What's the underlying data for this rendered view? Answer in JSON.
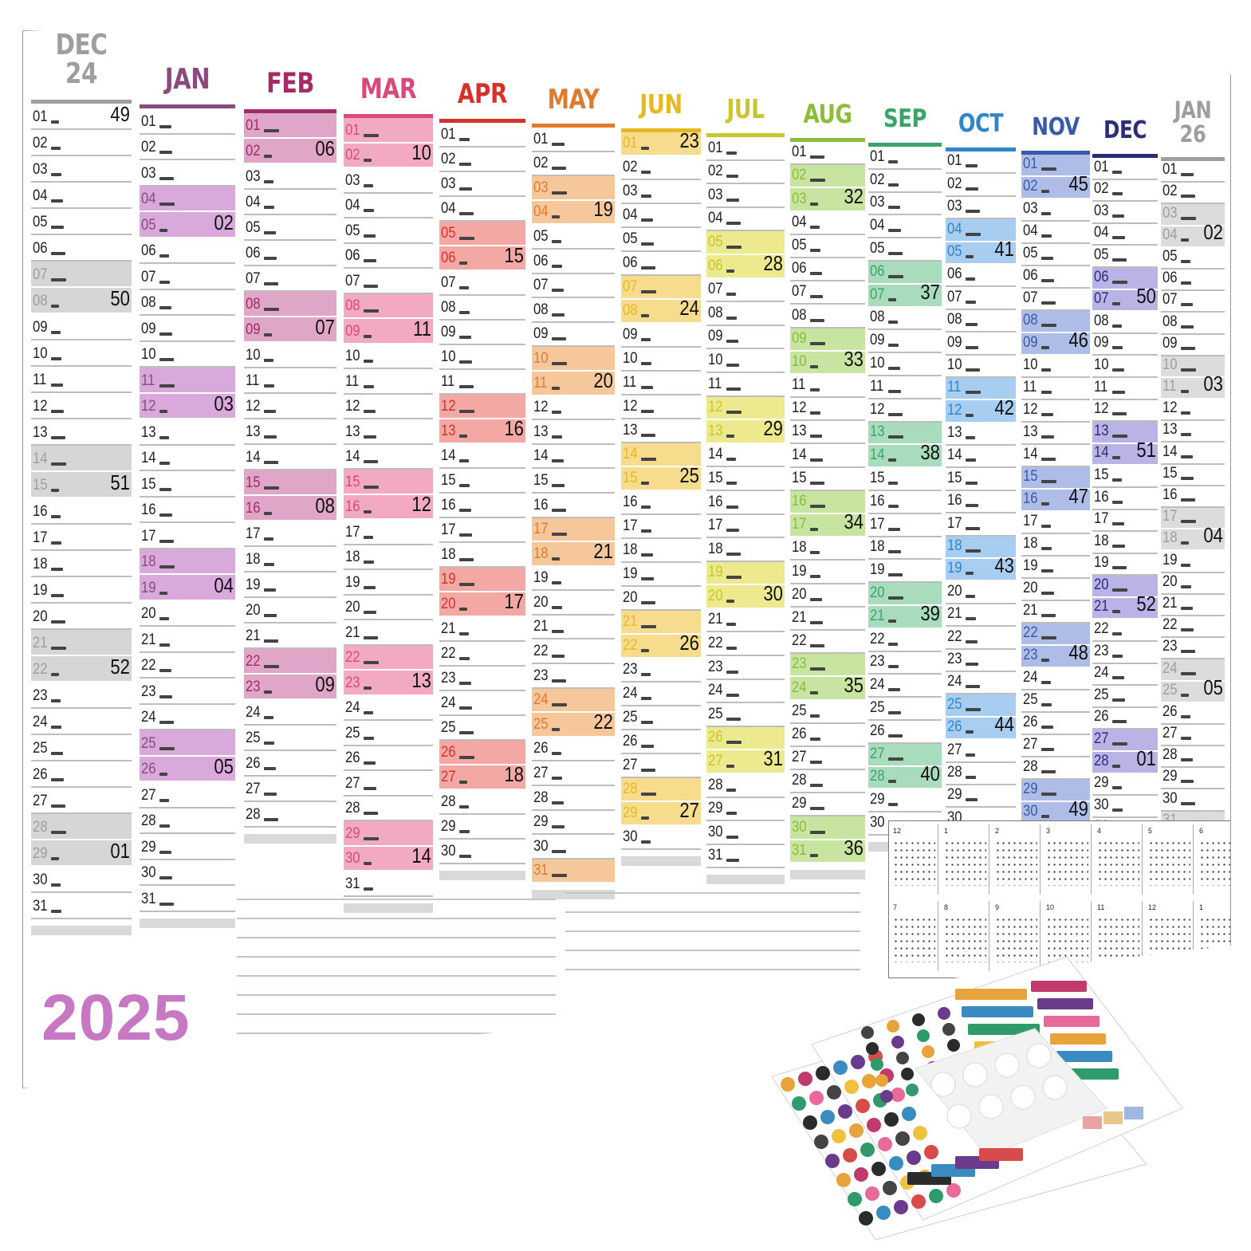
{
  "year_label": "2025",
  "columns": [
    {
      "name": "DEC 24",
      "color": "#9e9e9e",
      "days": 31,
      "start_dow": 6,
      "hl": "#d6d6d6",
      "hl_days": [
        7,
        8,
        14,
        15,
        21,
        22,
        28,
        29
      ],
      "weeks": {
        "1": "49",
        "8": "50",
        "15": "51",
        "22": "52",
        "29": "01"
      }
    },
    {
      "name": "JAN",
      "color": "#8b4a7d",
      "days": 31,
      "start_dow": 2,
      "hl": "#d9a9dc",
      "hl_days": [
        4,
        5,
        11,
        12,
        18,
        19,
        25,
        26
      ],
      "weeks": {
        "5": "02",
        "12": "03",
        "19": "04",
        "26": "05"
      }
    },
    {
      "name": "FEB",
      "color": "#a32b66",
      "days": 28,
      "start_dow": 5,
      "hl": "#e0a6c7",
      "hl_days": [
        1,
        2,
        8,
        9,
        15,
        16,
        22,
        23
      ],
      "weeks": {
        "2": "06",
        "9": "07",
        "16": "08",
        "23": "09"
      }
    },
    {
      "name": "MAR",
      "color": "#d94a7a",
      "days": 31,
      "start_dow": 5,
      "hl": "#f2aac0",
      "hl_days": [
        1,
        2,
        8,
        9,
        15,
        16,
        22,
        23,
        29,
        30
      ],
      "weeks": {
        "2": "10",
        "9": "11",
        "16": "12",
        "23": "13",
        "30": "14"
      }
    },
    {
      "name": "APR",
      "color": "#d6322d",
      "days": 30,
      "start_dow": 1,
      "hl": "#f4a8a3",
      "hl_days": [
        5,
        6,
        12,
        13,
        19,
        20,
        26,
        27
      ],
      "weeks": {
        "6": "15",
        "13": "16",
        "20": "17",
        "27": "18"
      }
    },
    {
      "name": "MAY",
      "color": "#e07b2e",
      "days": 31,
      "start_dow": 3,
      "hl": "#f7c79c",
      "hl_days": [
        3,
        4,
        10,
        11,
        17,
        18,
        24,
        25,
        31
      ],
      "weeks": {
        "4": "19",
        "11": "20",
        "18": "21",
        "25": "22"
      }
    },
    {
      "name": "JUN",
      "color": "#e8b81f",
      "days": 30,
      "start_dow": 6,
      "hl": "#f8dc8e",
      "hl_days": [
        1,
        7,
        8,
        14,
        15,
        21,
        22,
        28,
        29
      ],
      "weeks": {
        "1": "23",
        "8": "24",
        "15": "25",
        "22": "26",
        "29": "27"
      }
    },
    {
      "name": "JUL",
      "color": "#c9c52a",
      "days": 31,
      "start_dow": 1,
      "hl": "#ece98e",
      "hl_days": [
        5,
        6,
        12,
        13,
        19,
        20,
        26,
        27
      ],
      "weeks": {
        "6": "28",
        "13": "29",
        "20": "30",
        "27": "31"
      }
    },
    {
      "name": "AUG",
      "color": "#8dbb3a",
      "days": 31,
      "start_dow": 4,
      "hl": "#c8e4a1",
      "hl_days": [
        2,
        3,
        9,
        10,
        16,
        17,
        23,
        24,
        30,
        31
      ],
      "weeks": {
        "3": "32",
        "10": "33",
        "17": "34",
        "24": "35",
        "31": "36"
      }
    },
    {
      "name": "SEP",
      "color": "#3aa46a",
      "days": 30,
      "start_dow": 0,
      "hl": "#a8dcbc",
      "hl_days": [
        6,
        7,
        13,
        14,
        20,
        21,
        27,
        28
      ],
      "weeks": {
        "7": "37",
        "14": "38",
        "21": "39",
        "28": "40"
      }
    },
    {
      "name": "OCT",
      "color": "#2f86c8",
      "days": 31,
      "start_dow": 2,
      "hl": "#a7cdf0",
      "hl_days": [
        4,
        5,
        11,
        12,
        18,
        19,
        25,
        26
      ],
      "weeks": {
        "5": "41",
        "12": "42",
        "19": "43",
        "26": "44"
      }
    },
    {
      "name": "NOV",
      "color": "#3a5aa8",
      "days": 30,
      "start_dow": 5,
      "hl": "#adbde8",
      "hl_days": [
        1,
        2,
        8,
        9,
        15,
        16,
        22,
        23,
        29,
        30
      ],
      "weeks": {
        "2": "45",
        "9": "46",
        "16": "47",
        "23": "48",
        "30": "49"
      }
    },
    {
      "name": "DEC",
      "color": "#2c2c7a",
      "days": 31,
      "start_dow": 0,
      "hl": "#b9b3e6",
      "hl_days": [
        6,
        7,
        13,
        14,
        20,
        21,
        27,
        28
      ],
      "weeks": {
        "7": "50",
        "14": "51",
        "21": "52",
        "28": "01"
      }
    },
    {
      "name": "JAN 26",
      "color": "#9e9e9e",
      "days": 31,
      "start_dow": 3,
      "hl": "#dcdcdc",
      "hl_days": [
        3,
        4,
        10,
        11,
        17,
        18,
        24,
        25,
        31
      ],
      "weeks": {
        "4": "02",
        "11": "03",
        "18": "04",
        "25": "05"
      }
    }
  ],
  "mini_calendars": [
    {
      "label": "12"
    },
    {
      "label": "1"
    },
    {
      "label": "2"
    },
    {
      "label": "3"
    },
    {
      "label": "4"
    },
    {
      "label": "5"
    },
    {
      "label": "6"
    },
    {
      "label": "7"
    },
    {
      "label": "8"
    },
    {
      "label": "9"
    },
    {
      "label": "10"
    },
    {
      "label": "11"
    },
    {
      "label": "12"
    },
    {
      "label": "1"
    }
  ],
  "sticker_colors": [
    "#e8a33a",
    "#c03a6b",
    "#2b2b2b",
    "#3a8bc0",
    "#6a3a8c",
    "#d94a4a",
    "#2f9a6a",
    "#e86a9a",
    "#444444",
    "#f0c040"
  ]
}
